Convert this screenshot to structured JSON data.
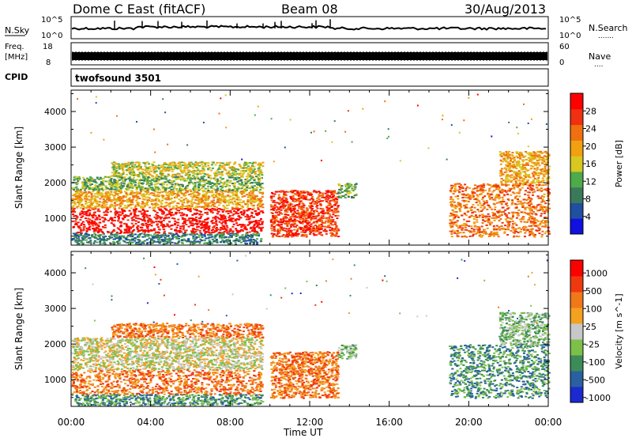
{
  "header": {
    "title": "Dome C East (fitACF)",
    "beam": "Beam 08",
    "date": "30/Aug/2013"
  },
  "nsky_panel": {
    "label": "N.Sky",
    "left_ticks": [
      "10^5",
      "10^0"
    ],
    "right_ticks": [
      "10^5",
      "10^0"
    ],
    "right_label": "N.Search",
    "right_dots": "......."
  },
  "freq_panel": {
    "label_line1": "Freq.",
    "label_line2": "[MHz]",
    "left_ticks": [
      "18",
      "8"
    ],
    "right_ticks": [
      "60",
      "0"
    ],
    "right_label": "Nave",
    "right_dots": "...."
  },
  "cpid_panel": {
    "label": "CPID",
    "value": "twofsound 3501"
  },
  "colors": {
    "power": [
      "#1010e0",
      "#204fa0",
      "#3a7a5a",
      "#4faa4a",
      "#d8c820",
      "#f0a010",
      "#f07010",
      "#f03010",
      "#ff0000"
    ],
    "velocity": [
      "#ff0000",
      "#f03810",
      "#f07818",
      "#f4a020",
      "#c8c8c8",
      "#7cc04a",
      "#3c8c58",
      "#2a60a0",
      "#1a2ad0"
    ]
  },
  "chart_data": [
    {
      "type": "heatmap",
      "name": "power-panel",
      "xlabel": "",
      "ylabel": "Slant Range [km]",
      "x_range_hours": [
        0,
        24
      ],
      "ylim": [
        250,
        4600
      ],
      "yticks": [
        1000,
        2000,
        3000,
        4000
      ],
      "colorbar": {
        "label": "Power [dB]",
        "ticks": [
          "4",
          "8",
          "12",
          "16",
          "20",
          "24",
          "28"
        ],
        "range": [
          0,
          32
        ]
      },
      "regions": [
        {
          "x0": 0.0,
          "x1": 9.6,
          "y0": 600,
          "y1": 1300,
          "level": 8
        },
        {
          "x0": 0.0,
          "x1": 9.6,
          "y0": 1300,
          "y1": 1800,
          "level": 5
        },
        {
          "x0": 0.0,
          "x1": 9.6,
          "y0": 1800,
          "y1": 2200,
          "level": 3
        },
        {
          "x0": 2.0,
          "x1": 9.6,
          "y0": 2200,
          "y1": 2600,
          "level": 4
        },
        {
          "x0": 10.0,
          "x1": 13.4,
          "y0": 500,
          "y1": 1800,
          "level": 7
        },
        {
          "x0": 13.4,
          "x1": 14.3,
          "y0": 1600,
          "y1": 2000,
          "level": 3
        },
        {
          "x0": 19.0,
          "x1": 24.0,
          "y0": 500,
          "y1": 2000,
          "level": 6
        },
        {
          "x0": 21.5,
          "x1": 24.0,
          "y0": 2000,
          "y1": 2900,
          "level": 5
        },
        {
          "x0": 0.0,
          "x1": 9.6,
          "y0": 300,
          "y1": 600,
          "level": 2
        }
      ]
    },
    {
      "type": "heatmap",
      "name": "velocity-panel",
      "xlabel": "Time UT",
      "ylabel": "Slant Range [km]",
      "x_range_hours": [
        0,
        24
      ],
      "xticks": [
        "00:00",
        "04:00",
        "08:00",
        "12:00",
        "16:00",
        "20:00",
        "00:00"
      ],
      "ylim": [
        250,
        4600
      ],
      "yticks": [
        1000,
        2000,
        3000,
        4000
      ],
      "colorbar": {
        "label": "Velocity [m s^-1]",
        "ticks": [
          "1000",
          "500",
          "100",
          "25",
          "-25",
          "-100",
          "-500",
          "-1000"
        ]
      },
      "regions": [
        {
          "x0": 0.0,
          "x1": 9.6,
          "y0": 600,
          "y1": 1300,
          "level": 2
        },
        {
          "x0": 0.0,
          "x1": 9.6,
          "y0": 1300,
          "y1": 1800,
          "level": 4
        },
        {
          "x0": 0.0,
          "x1": 9.6,
          "y0": 1800,
          "y1": 2200,
          "level": 4
        },
        {
          "x0": 2.0,
          "x1": 9.6,
          "y0": 2200,
          "y1": 2600,
          "level": 2
        },
        {
          "x0": 10.0,
          "x1": 13.4,
          "y0": 500,
          "y1": 1800,
          "level": 2
        },
        {
          "x0": 13.4,
          "x1": 14.3,
          "y0": 1600,
          "y1": 2000,
          "level": 5
        },
        {
          "x0": 19.0,
          "x1": 24.0,
          "y0": 500,
          "y1": 2000,
          "level": 6
        },
        {
          "x0": 21.5,
          "x1": 24.0,
          "y0": 2000,
          "y1": 2900,
          "level": 5
        },
        {
          "x0": 0.0,
          "x1": 9.6,
          "y0": 300,
          "y1": 600,
          "level": 6
        }
      ]
    }
  ]
}
